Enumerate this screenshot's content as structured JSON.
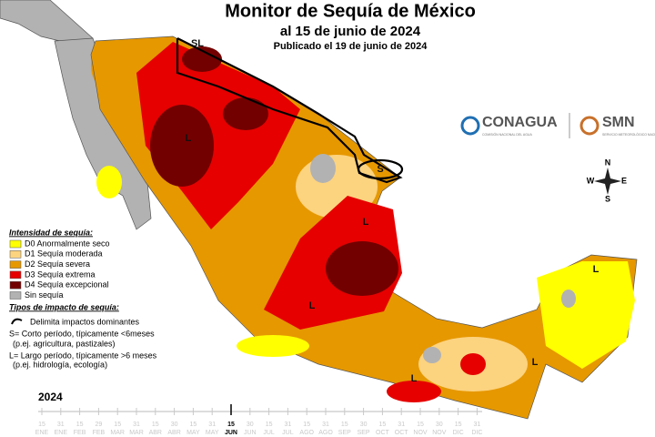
{
  "title": "Monitor de Sequía de México",
  "subtitle": "al 15 de junio de 2024",
  "published": "Publicado el 19 de junio de 2024",
  "legend": {
    "title": "Intensidad de sequía:",
    "items": [
      {
        "label": "D0 Anormalmente seco",
        "color": "#ffff00"
      },
      {
        "label": "D1 Sequía moderada",
        "color": "#fcd37f"
      },
      {
        "label": "D2 Sequía severa",
        "color": "#e69800"
      },
      {
        "label": "D3 Sequía extrema",
        "color": "#e60000"
      },
      {
        "label": "D4 Sequía excepcional",
        "color": "#730000"
      },
      {
        "label": "Sin sequía",
        "color": "#b2b2b2"
      }
    ]
  },
  "impact": {
    "title": "Tipos de impacto de sequía:",
    "items": [
      "Delimita impactos dominantes",
      "S= Corto período, típicamente <6meses",
      "(p.ej. agricultura, pastizales)",
      "L= Largo período, típicamente >6 meses",
      "(p.ej. hidrología, ecología)"
    ]
  },
  "map_labels": [
    "SL",
    "L",
    "S",
    "L",
    "L",
    "L",
    "L",
    "L"
  ],
  "logos": {
    "conagua": "CONAGUA",
    "conagua_sub": "COMISIÓN NACIONAL DEL AGUA",
    "smn": "SMN",
    "smn_sub": "SERVICIO METEOROLÓGICO NACIONAL"
  },
  "compass": [
    "N",
    "S",
    "E",
    "W"
  ],
  "timeline": {
    "year": "2024",
    "ticks": [
      {
        "day": "15",
        "month": "ENE"
      },
      {
        "day": "31",
        "month": "ENE"
      },
      {
        "day": "15",
        "month": "FEB"
      },
      {
        "day": "29",
        "month": "FEB"
      },
      {
        "day": "15",
        "month": "MAR"
      },
      {
        "day": "31",
        "month": "MAR"
      },
      {
        "day": "15",
        "month": "ABR"
      },
      {
        "day": "30",
        "month": "ABR"
      },
      {
        "day": "15",
        "month": "MAY"
      },
      {
        "day": "31",
        "month": "MAY"
      },
      {
        "day": "15",
        "month": "JUN",
        "highlight": true
      },
      {
        "day": "30",
        "month": "JUN"
      },
      {
        "day": "15",
        "month": "JUL"
      },
      {
        "day": "31",
        "month": "JUL"
      },
      {
        "day": "15",
        "month": "AGO"
      },
      {
        "day": "31",
        "month": "AGO"
      },
      {
        "day": "15",
        "month": "SEP"
      },
      {
        "day": "30",
        "month": "SEP"
      },
      {
        "day": "15",
        "month": "OCT"
      },
      {
        "day": "31",
        "month": "OCT"
      },
      {
        "day": "15",
        "month": "NOV"
      },
      {
        "day": "30",
        "month": "NOV"
      },
      {
        "day": "15",
        "month": "DIC"
      },
      {
        "day": "31",
        "month": "DIC"
      }
    ]
  }
}
